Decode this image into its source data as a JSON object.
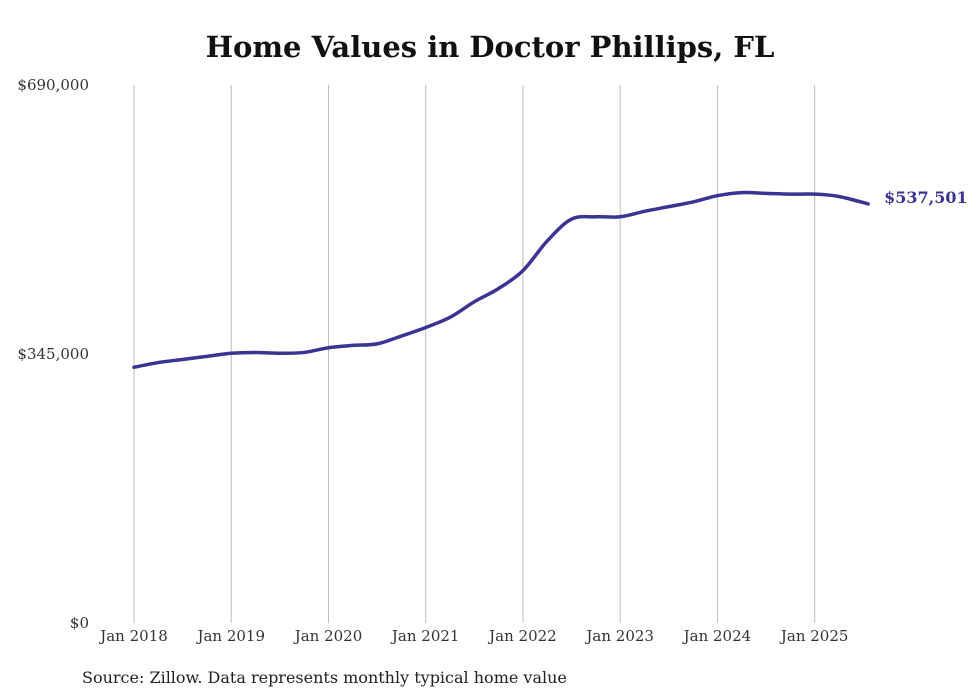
{
  "chart_data": {
    "type": "line",
    "title": "Home Values in Doctor Phillips, FL",
    "xlabel": "",
    "ylabel": "",
    "ylim": [
      0,
      690000
    ],
    "y_ticks": [
      {
        "value": 0,
        "label": "$0"
      },
      {
        "value": 345000,
        "label": "$345,000"
      },
      {
        "value": 690000,
        "label": "$690,000"
      }
    ],
    "x_ticks": [
      {
        "value": 2018,
        "label": "Jan 2018"
      },
      {
        "value": 2019,
        "label": "Jan 2019"
      },
      {
        "value": 2020,
        "label": "Jan 2020"
      },
      {
        "value": 2021,
        "label": "Jan 2021"
      },
      {
        "value": 2022,
        "label": "Jan 2022"
      },
      {
        "value": 2023,
        "label": "Jan 2023"
      },
      {
        "value": 2024,
        "label": "Jan 2024"
      },
      {
        "value": 2025,
        "label": "Jan 2025"
      }
    ],
    "xlim": [
      2018,
      2025.6
    ],
    "grid": {
      "vertical": true,
      "horizontal": false
    },
    "series": [
      {
        "name": "Typical home value",
        "color": "#3b3494",
        "x": [
          2018.0,
          2018.25,
          2018.5,
          2018.75,
          2019.0,
          2019.25,
          2019.5,
          2019.75,
          2020.0,
          2020.25,
          2020.5,
          2020.75,
          2021.0,
          2021.25,
          2021.5,
          2021.75,
          2022.0,
          2022.25,
          2022.5,
          2022.75,
          2023.0,
          2023.25,
          2023.5,
          2023.75,
          2024.0,
          2024.25,
          2024.5,
          2024.75,
          2025.0,
          2025.25,
          2025.55
        ],
        "values": [
          328000,
          334000,
          338000,
          342000,
          346000,
          347000,
          346000,
          347000,
          353000,
          356000,
          358000,
          368000,
          379000,
          392000,
          412000,
          429000,
          452000,
          490000,
          518000,
          521000,
          521000,
          528000,
          534000,
          540000,
          548000,
          552000,
          551000,
          550000,
          550000,
          547000,
          537501
        ]
      }
    ],
    "end_label": "$537,501"
  },
  "footer": {
    "source": "Source: Zillow. Data represents monthly typical home value"
  }
}
